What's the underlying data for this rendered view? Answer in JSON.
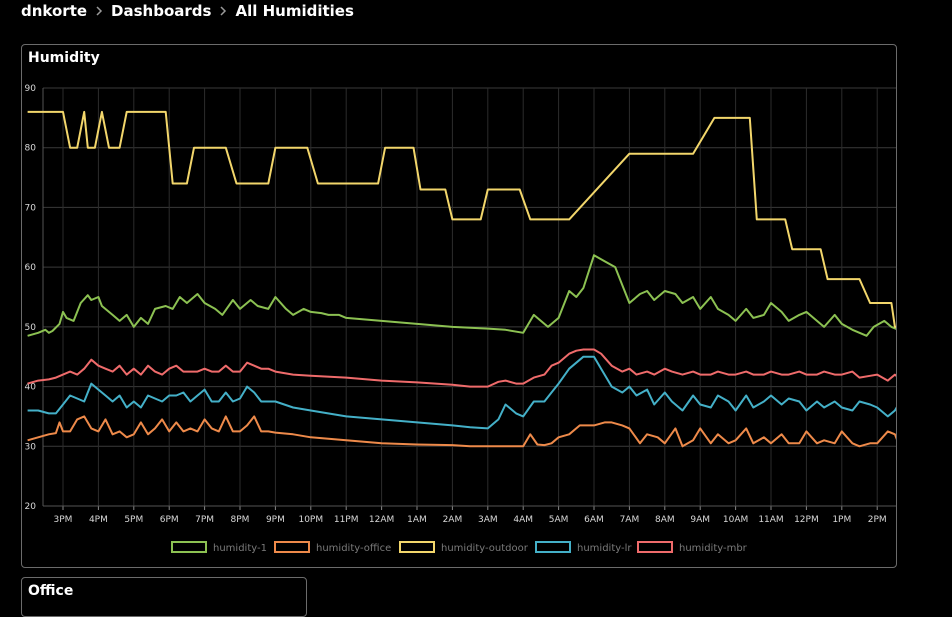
{
  "breadcrumb": {
    "items": [
      "dnkorte",
      "Dashboards",
      "All Humidities"
    ]
  },
  "panels": {
    "humidity_title": "Humidity",
    "office_title": "Office"
  },
  "colors": {
    "humidity-1": "#8cc152",
    "humidity-office": "#ee8a4a",
    "humidity-outdoor": "#f2d66b",
    "humidity-lr": "#44b0c8",
    "humidity-mbr": "#ef6b6b"
  },
  "chart_data": {
    "type": "line",
    "title": "Humidity",
    "ylim": [
      20,
      90
    ],
    "yticks": [
      20,
      30,
      40,
      50,
      60,
      70,
      80,
      90
    ],
    "x_tick_labels": [
      "3PM",
      "4PM",
      "5PM",
      "6PM",
      "7PM",
      "8PM",
      "9PM",
      "10PM",
      "11PM",
      "12AM",
      "1AM",
      "2AM",
      "3AM",
      "4AM",
      "5AM",
      "6AM",
      "7AM",
      "8AM",
      "9AM",
      "10AM",
      "11AM",
      "12PM",
      "1PM",
      "2PM"
    ],
    "x_unit": "hours after 2PM",
    "grid": true,
    "legend_position": "bottom",
    "series": [
      {
        "name": "humidity-1",
        "x": [
          0.0,
          0.3,
          0.5,
          0.6,
          0.7,
          0.9,
          1.0,
          1.1,
          1.3,
          1.5,
          1.7,
          1.8,
          2.0,
          2.1,
          2.4,
          2.6,
          2.8,
          3.0,
          3.2,
          3.4,
          3.6,
          3.9,
          4.1,
          4.3,
          4.5,
          4.8,
          5.0,
          5.3,
          5.5,
          5.8,
          6.0,
          6.3,
          6.5,
          6.8,
          7.0,
          7.3,
          7.5,
          7.8,
          8.0,
          8.3,
          8.5,
          8.8,
          9.0,
          10.0,
          11.0,
          12.0,
          13.0,
          13.5,
          14.0,
          14.3,
          14.5,
          14.7,
          15.0,
          15.3,
          15.5,
          15.7,
          16.0,
          16.3,
          16.6,
          16.8,
          17.0,
          17.3,
          17.5,
          17.7,
          18.0,
          18.3,
          18.5,
          18.8,
          19.0,
          19.3,
          19.5,
          19.8,
          20.0,
          20.3,
          20.5,
          20.8,
          21.0,
          21.3,
          21.5,
          21.8,
          22.0,
          22.3,
          22.5,
          22.8,
          23.0,
          23.3,
          23.5,
          23.7,
          23.9,
          24.2,
          24.4,
          24.6
        ],
        "y": [
          48.5,
          49.0,
          49.5,
          49.0,
          49.3,
          50.5,
          52.5,
          51.5,
          51.0,
          54.0,
          55.3,
          54.5,
          55.0,
          53.5,
          52.0,
          51.0,
          52.0,
          50.0,
          51.5,
          50.5,
          53.0,
          53.5,
          53.0,
          55.0,
          54.0,
          55.5,
          54.0,
          53.0,
          52.0,
          54.5,
          53.0,
          54.5,
          53.5,
          53.0,
          55.0,
          53.0,
          52.0,
          53.0,
          52.5,
          52.3,
          52.0,
          52.0,
          51.5,
          51.0,
          50.5,
          50.0,
          49.7,
          49.5,
          49.0,
          52.0,
          51.0,
          50.0,
          51.5,
          56.0,
          55.0,
          56.5,
          62.0,
          61.0,
          60.0,
          57.0,
          54.0,
          55.5,
          56.0,
          54.5,
          56.0,
          55.5,
          54.0,
          55.0,
          53.0,
          55.0,
          53.0,
          52.0,
          51.0,
          53.0,
          51.5,
          52.0,
          54.0,
          52.5,
          51.0,
          52.0,
          52.5,
          51.0,
          50.0,
          52.0,
          50.5,
          49.5,
          49.0,
          48.5,
          50.0,
          51.0,
          50.0,
          49.5
        ]
      },
      {
        "name": "humidity-office",
        "x": [
          0.0,
          0.3,
          0.6,
          0.8,
          0.9,
          1.0,
          1.2,
          1.4,
          1.6,
          1.8,
          2.0,
          2.2,
          2.4,
          2.6,
          2.8,
          3.0,
          3.2,
          3.4,
          3.6,
          3.8,
          4.0,
          4.2,
          4.4,
          4.6,
          4.8,
          5.0,
          5.2,
          5.4,
          5.6,
          5.8,
          6.0,
          6.2,
          6.4,
          6.6,
          6.8,
          7.0,
          7.5,
          8.0,
          9.0,
          10.0,
          11.0,
          12.0,
          12.5,
          13.0,
          13.5,
          14.0,
          14.2,
          14.4,
          14.6,
          14.8,
          15.0,
          15.3,
          15.6,
          16.0,
          16.3,
          16.5,
          16.8,
          17.0,
          17.3,
          17.5,
          17.8,
          18.0,
          18.3,
          18.5,
          18.8,
          19.0,
          19.3,
          19.5,
          19.8,
          20.0,
          20.3,
          20.5,
          20.8,
          21.0,
          21.3,
          21.5,
          21.8,
          22.0,
          22.3,
          22.5,
          22.8,
          23.0,
          23.3,
          23.5,
          23.8,
          24.0,
          24.3,
          24.5,
          24.6
        ],
        "y": [
          31.0,
          31.5,
          32.0,
          32.2,
          34.0,
          32.5,
          32.5,
          34.5,
          35.0,
          33.0,
          32.5,
          34.5,
          32.0,
          32.5,
          31.5,
          32.0,
          34.0,
          32.0,
          33.0,
          34.5,
          32.5,
          34.0,
          32.5,
          33.0,
          32.5,
          34.5,
          33.0,
          32.5,
          35.0,
          32.5,
          32.5,
          33.5,
          35.0,
          32.5,
          32.5,
          32.3,
          32.0,
          31.5,
          31.0,
          30.5,
          30.3,
          30.2,
          30.0,
          30.0,
          30.0,
          30.0,
          32.0,
          30.3,
          30.2,
          30.5,
          31.5,
          32.0,
          33.5,
          33.5,
          34.0,
          34.0,
          33.5,
          33.0,
          30.5,
          32.0,
          31.5,
          30.5,
          33.0,
          30.0,
          31.0,
          33.0,
          30.5,
          32.0,
          30.5,
          31.0,
          33.0,
          30.5,
          31.5,
          30.5,
          32.0,
          30.5,
          30.5,
          32.5,
          30.5,
          31.0,
          30.5,
          32.5,
          30.5,
          30.0,
          30.5,
          30.5,
          32.5,
          32.0,
          30.5
        ]
      },
      {
        "name": "humidity-outdoor",
        "x": [
          0.0,
          1.0,
          1.2,
          1.4,
          1.6,
          1.7,
          1.9,
          2.1,
          2.3,
          2.6,
          2.8,
          3.0,
          3.9,
          4.1,
          4.5,
          4.7,
          5.6,
          5.9,
          6.8,
          7.0,
          7.9,
          8.2,
          9.9,
          10.1,
          10.9,
          11.1,
          11.8,
          12.0,
          12.8,
          13.0,
          13.9,
          14.2,
          15.0,
          15.3,
          17.0,
          17.4,
          18.5,
          18.8,
          19.4,
          19.6,
          20.4,
          20.6,
          21.4,
          21.6,
          22.4,
          22.6,
          23.5,
          23.8,
          24.4,
          24.5,
          24.6
        ],
        "y": [
          86,
          86,
          80,
          80,
          86,
          80,
          80,
          86,
          80,
          80,
          86,
          86,
          86,
          74,
          74,
          80,
          80,
          74,
          74,
          80,
          80,
          74,
          74,
          80,
          80,
          73,
          73,
          68,
          68,
          73,
          73,
          68,
          68,
          68,
          79,
          79,
          79,
          79,
          85,
          85,
          85,
          68,
          68,
          63,
          63,
          58,
          58,
          54,
          54,
          50,
          50
        ]
      },
      {
        "name": "humidity-lr",
        "x": [
          0.0,
          0.3,
          0.6,
          0.8,
          1.0,
          1.2,
          1.4,
          1.6,
          1.8,
          2.0,
          2.2,
          2.4,
          2.6,
          2.8,
          3.0,
          3.2,
          3.4,
          3.6,
          3.8,
          4.0,
          4.2,
          4.4,
          4.6,
          4.8,
          5.0,
          5.2,
          5.4,
          5.6,
          5.8,
          6.0,
          6.2,
          6.4,
          6.6,
          6.8,
          7.0,
          7.5,
          8.0,
          9.0,
          10.0,
          11.0,
          12.0,
          12.5,
          13.0,
          13.3,
          13.5,
          13.8,
          14.0,
          14.3,
          14.6,
          14.8,
          15.0,
          15.3,
          15.5,
          15.7,
          16.0,
          16.2,
          16.5,
          16.8,
          17.0,
          17.2,
          17.5,
          17.7,
          18.0,
          18.2,
          18.5,
          18.8,
          19.0,
          19.3,
          19.5,
          19.8,
          20.0,
          20.3,
          20.5,
          20.8,
          21.0,
          21.3,
          21.5,
          21.8,
          22.0,
          22.3,
          22.5,
          22.8,
          23.0,
          23.3,
          23.5,
          23.8,
          24.0,
          24.3,
          24.5,
          24.6
        ],
        "y": [
          36.0,
          36.0,
          35.5,
          35.5,
          37.0,
          38.5,
          38.0,
          37.5,
          40.5,
          39.5,
          38.5,
          37.5,
          38.5,
          36.5,
          37.5,
          36.5,
          38.5,
          38.0,
          37.5,
          38.5,
          38.5,
          39.0,
          37.5,
          38.5,
          39.5,
          37.5,
          37.5,
          39.0,
          37.5,
          38.0,
          40.0,
          39.0,
          37.5,
          37.5,
          37.5,
          36.5,
          36.0,
          35.0,
          34.5,
          34.0,
          33.5,
          33.2,
          33.0,
          34.5,
          37.0,
          35.5,
          35.0,
          37.5,
          37.5,
          39.0,
          40.5,
          43.0,
          44.0,
          45.0,
          45.0,
          43.0,
          40.0,
          39.0,
          40.0,
          38.5,
          39.5,
          37.0,
          39.0,
          37.5,
          36.0,
          38.5,
          37.0,
          36.5,
          38.5,
          37.5,
          36.0,
          38.5,
          36.5,
          37.5,
          38.5,
          37.0,
          38.0,
          37.5,
          36.0,
          37.5,
          36.5,
          37.5,
          36.5,
          36.0,
          37.5,
          37.0,
          36.5,
          35.0,
          36.0,
          37.0
        ]
      },
      {
        "name": "humidity-mbr",
        "x": [
          0.0,
          0.3,
          0.6,
          0.8,
          1.0,
          1.2,
          1.4,
          1.6,
          1.8,
          2.0,
          2.2,
          2.4,
          2.6,
          2.8,
          3.0,
          3.2,
          3.4,
          3.6,
          3.8,
          4.0,
          4.2,
          4.4,
          4.6,
          4.8,
          5.0,
          5.2,
          5.4,
          5.6,
          5.8,
          6.0,
          6.2,
          6.4,
          6.6,
          6.8,
          7.0,
          7.5,
          8.0,
          9.0,
          10.0,
          11.0,
          12.0,
          12.5,
          13.0,
          13.3,
          13.5,
          13.8,
          14.0,
          14.3,
          14.6,
          14.8,
          15.0,
          15.3,
          15.5,
          15.7,
          16.0,
          16.2,
          16.5,
          16.8,
          17.0,
          17.2,
          17.5,
          17.7,
          18.0,
          18.2,
          18.5,
          18.8,
          19.0,
          19.3,
          19.5,
          19.8,
          20.0,
          20.3,
          20.5,
          20.8,
          21.0,
          21.3,
          21.5,
          21.8,
          22.0,
          22.3,
          22.5,
          22.8,
          23.0,
          23.3,
          23.5,
          23.8,
          24.0,
          24.3,
          24.5,
          24.6
        ],
        "y": [
          40.5,
          41.0,
          41.2,
          41.5,
          42.0,
          42.5,
          42.0,
          43.0,
          44.5,
          43.5,
          43.0,
          42.5,
          43.5,
          42.0,
          43.0,
          42.0,
          43.5,
          42.5,
          42.0,
          43.0,
          43.5,
          42.5,
          42.5,
          42.5,
          43.0,
          42.5,
          42.5,
          43.5,
          42.5,
          42.5,
          44.0,
          43.5,
          43.0,
          43.0,
          42.5,
          42.0,
          41.8,
          41.5,
          41.0,
          40.7,
          40.3,
          40.0,
          40.0,
          40.8,
          41.0,
          40.5,
          40.5,
          41.5,
          42.0,
          43.5,
          44.0,
          45.5,
          46.0,
          46.2,
          46.2,
          45.5,
          43.5,
          42.5,
          43.0,
          42.0,
          42.5,
          42.0,
          43.0,
          42.5,
          42.0,
          42.5,
          42.0,
          42.0,
          42.5,
          42.0,
          42.0,
          42.5,
          42.0,
          42.0,
          42.5,
          42.0,
          42.0,
          42.5,
          42.0,
          42.0,
          42.5,
          42.0,
          42.0,
          42.5,
          41.5,
          41.8,
          42.0,
          41.0,
          42.0,
          41.5
        ]
      }
    ]
  }
}
